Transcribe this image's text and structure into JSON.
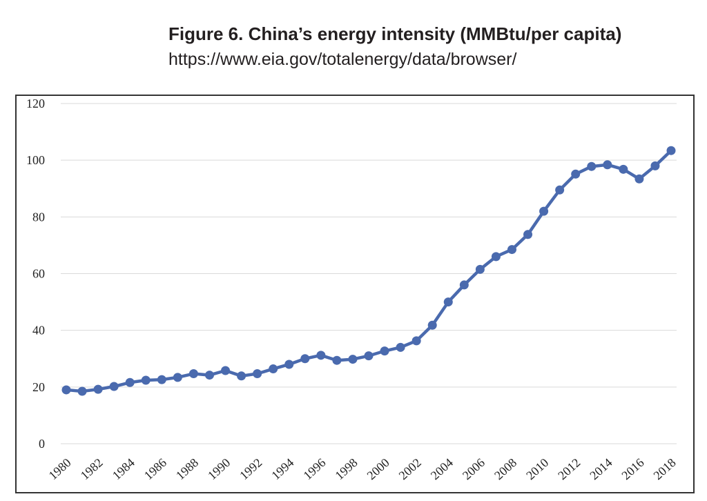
{
  "figure": {
    "title": "Figure 6. China’s energy intensity (MMBtu/per capita)",
    "source": "https://www.eia.gov/totalenergy/data/browser/"
  },
  "chart_data": {
    "type": "line",
    "title": "Figure 6. China’s energy intensity (MMBtu/per capita)",
    "xlabel": "",
    "ylabel": "",
    "x": [
      1980,
      1981,
      1982,
      1983,
      1984,
      1985,
      1986,
      1987,
      1988,
      1989,
      1990,
      1991,
      1992,
      1993,
      1994,
      1995,
      1996,
      1997,
      1998,
      1999,
      2000,
      2001,
      2002,
      2003,
      2004,
      2005,
      2006,
      2007,
      2008,
      2009,
      2010,
      2011,
      2012,
      2013,
      2014,
      2015,
      2016,
      2017,
      2018
    ],
    "series": [
      {
        "name": "Energy intensity (MMBtu per capita)",
        "color": "#4a6aae",
        "values": [
          19.0,
          18.5,
          19.2,
          20.2,
          21.6,
          22.4,
          22.6,
          23.4,
          24.7,
          24.2,
          25.8,
          23.9,
          24.7,
          26.4,
          28.0,
          30.0,
          31.2,
          29.4,
          29.8,
          31.0,
          32.7,
          34.0,
          36.3,
          41.8,
          50.0,
          56.0,
          61.5,
          66.0,
          68.5,
          73.8,
          82.0,
          89.5,
          95.1,
          97.8,
          98.4,
          96.8,
          93.4,
          98.0,
          103.4
        ]
      }
    ],
    "xticks": [
      "1980",
      "1982",
      "1984",
      "1986",
      "1988",
      "1990",
      "1992",
      "1994",
      "1996",
      "1998",
      "2000",
      "2002",
      "2004",
      "2006",
      "2008",
      "2010",
      "2012",
      "2014",
      "2016",
      "2018"
    ],
    "yticks": [
      "0",
      "20",
      "40",
      "60",
      "80",
      "100",
      "120"
    ],
    "xlim": [
      1980,
      2018
    ],
    "ylim": [
      0,
      120
    ],
    "grid": true,
    "colors": {
      "line": "#4a6aae",
      "grid": "#d9d9d9",
      "frame": "#333333"
    }
  }
}
